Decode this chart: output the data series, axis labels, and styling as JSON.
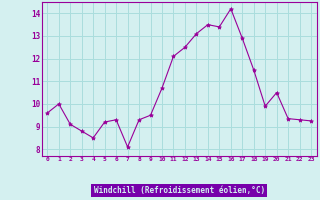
{
  "x": [
    0,
    1,
    2,
    3,
    4,
    5,
    6,
    7,
    8,
    9,
    10,
    11,
    12,
    13,
    14,
    15,
    16,
    17,
    18,
    19,
    20,
    21,
    22,
    23
  ],
  "y": [
    9.6,
    10.0,
    9.1,
    8.8,
    8.5,
    9.2,
    9.3,
    8.1,
    9.3,
    9.5,
    10.7,
    12.1,
    12.5,
    13.1,
    13.5,
    13.4,
    14.2,
    12.9,
    11.5,
    9.9,
    10.5,
    9.35,
    9.3,
    9.25
  ],
  "line_color": "#990099",
  "marker": "*",
  "marker_size": 3,
  "bg_color": "#d4f0f0",
  "plot_bg_color": "#d4f0f0",
  "grid_color": "#aadddd",
  "xlabel": "Windchill (Refroidissement éolien,°C)",
  "xlabel_color": "#990099",
  "xlabel_bg": "#9900cc",
  "ylabel_ticks": [
    8,
    9,
    10,
    11,
    12,
    13,
    14
  ],
  "xtick_labels": [
    "0",
    "1",
    "2",
    "3",
    "4",
    "5",
    "6",
    "7",
    "8",
    "9",
    "10",
    "11",
    "12",
    "13",
    "14",
    "15",
    "16",
    "17",
    "18",
    "19",
    "20",
    "21",
    "22",
    "23"
  ],
  "ylim": [
    7.7,
    14.5
  ],
  "xlim": [
    -0.5,
    23.5
  ],
  "tick_color": "#990099",
  "axis_color": "#990099",
  "bottom_bar_color": "#7700aa",
  "label_text_color": "#d4f0f0"
}
